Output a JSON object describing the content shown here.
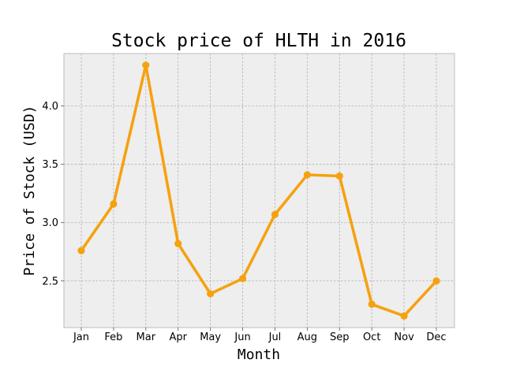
{
  "chart_data": {
    "type": "line",
    "title": "Stock price of HLTH in 2016",
    "xlabel": "Month",
    "ylabel": "Price of Stock (USD)",
    "categories": [
      "Jan",
      "Feb",
      "Mar",
      "Apr",
      "May",
      "Jun",
      "Jul",
      "Aug",
      "Sep",
      "Oct",
      "Nov",
      "Dec"
    ],
    "series": [
      {
        "values": [
          2.76,
          3.16,
          4.35,
          2.82,
          2.39,
          2.52,
          3.07,
          3.41,
          3.4,
          2.3,
          2.2,
          2.5
        ],
        "color": "#f5a210"
      }
    ],
    "ylim": [
      2.1,
      4.45
    ],
    "yticks": [
      2.5,
      3.0,
      3.5,
      4.0
    ],
    "ytick_labels": [
      "2.5",
      "3.0",
      "3.5",
      "4.0"
    ],
    "grid": true,
    "background": "#eeeeee"
  }
}
